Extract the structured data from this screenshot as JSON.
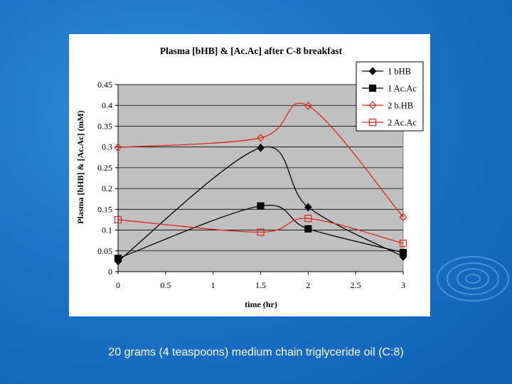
{
  "caption": "20 grams (4 teaspoons) medium chain triglyceride oil (C:8)",
  "colors": {
    "plot_background": "#c0c0c0",
    "series_black": "#000000",
    "series_red": "#e0261c"
  },
  "chart_data": {
    "type": "line",
    "title": "Plasma [bHB] & [Ac.Ac] after C-8 breakfast",
    "xlabel": "time (hr)",
    "ylabel": "Plasma [bHB] & [Ac.Ac] (mM)",
    "xlim": [
      0,
      3
    ],
    "ylim": [
      0,
      0.45
    ],
    "x_ticks": [
      "0",
      "0.5",
      "1",
      "1.5",
      "2",
      "2.5",
      "3"
    ],
    "y_ticks": [
      "0",
      "0.05",
      "0.1",
      "0.15",
      "0.2",
      "0.25",
      "0.3",
      "0.35",
      "0.4",
      "0.45"
    ],
    "grid": "horizontal",
    "legend": "top-right",
    "smooth": true,
    "series": [
      {
        "name": "1 bHB",
        "color": "#000000",
        "marker": "diamond-filled",
        "x": [
          0,
          1.5,
          2,
          3
        ],
        "values": [
          0.025,
          0.298,
          0.155,
          0.036
        ]
      },
      {
        "name": "1 Ac.Ac",
        "color": "#000000",
        "marker": "square-filled",
        "x": [
          0,
          1.5,
          2,
          3
        ],
        "values": [
          0.032,
          0.158,
          0.103,
          0.046
        ]
      },
      {
        "name": "2 b.HB",
        "color": "#e0261c",
        "marker": "diamond-open",
        "x": [
          0,
          1.5,
          2,
          3
        ],
        "values": [
          0.299,
          0.322,
          0.399,
          0.131
        ]
      },
      {
        "name": "2 Ac.Ac",
        "color": "#e0261c",
        "marker": "square-open",
        "x": [
          0,
          1.5,
          2,
          3
        ],
        "values": [
          0.125,
          0.095,
          0.128,
          0.068
        ]
      }
    ]
  }
}
